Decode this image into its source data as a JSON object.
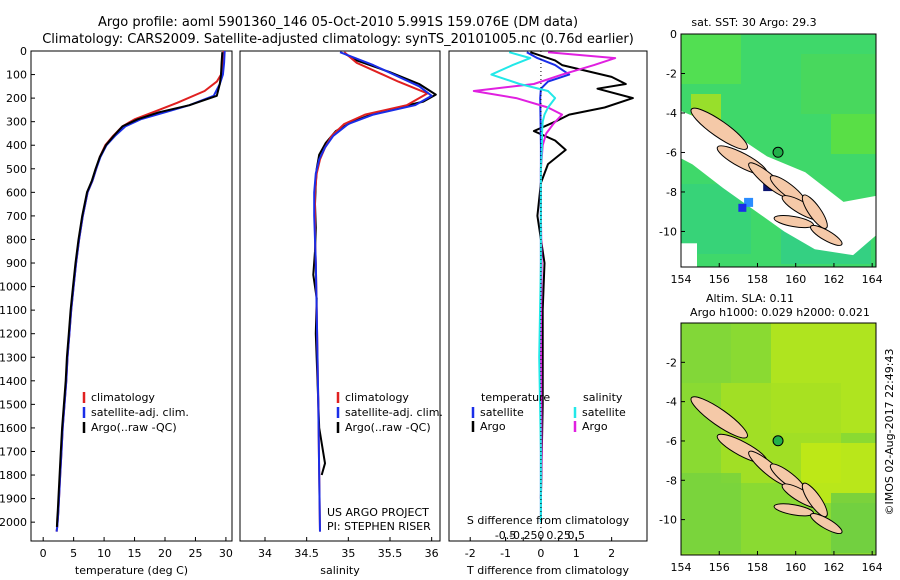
{
  "title": {
    "line1": "Argo profile: aoml 5901360_146 05-Oct-2010 5.991S 159.076E (DM data)",
    "line2": "Climatology: CARS2009. Satellite-adjusted climatology: synTS_20101005.nc (0.76d earlier)"
  },
  "colors": {
    "climatology": "#e02020",
    "satellite": "#1a2ee8",
    "argo": "#000000",
    "argo_salinity_diff": "#e020e0",
    "satellite_salinity_diff": "#22e8e8",
    "land": "#f5c9a8",
    "no_data": "#ffffff"
  },
  "chart_data": [
    {
      "type": "line",
      "id": "temperature",
      "xlabel": "temperature (deg C)",
      "xlim": [
        -2,
        31
      ],
      "xticks": [
        0,
        5,
        10,
        15,
        20,
        25,
        30
      ],
      "ylim": [
        0,
        2080
      ],
      "yticks": [
        0,
        100,
        200,
        300,
        400,
        500,
        600,
        700,
        800,
        900,
        1000,
        1100,
        1200,
        1300,
        1400,
        1500,
        1600,
        1700,
        1800,
        1900,
        2000
      ],
      "legend": [
        "climatology",
        "satellite-adj. clim.",
        "Argo(..raw -QC)"
      ],
      "series": [
        {
          "name": "climatology",
          "color_key": "climatology",
          "x": [
            29.6,
            29.5,
            29.2,
            28.5,
            26.5,
            22,
            18,
            15,
            13,
            11.5,
            10.2,
            9.3,
            8.7,
            8.1,
            7.3,
            6.5,
            5.9,
            5.4,
            5.0,
            4.6,
            4.3,
            4.0,
            3.8,
            3.5,
            3.2,
            3.0,
            2.8,
            2.6,
            2.5,
            2.4,
            2.3,
            2.2
          ],
          "y": [
            0,
            50,
            100,
            130,
            170,
            220,
            260,
            290,
            320,
            360,
            400,
            450,
            500,
            550,
            600,
            700,
            800,
            900,
            1000,
            1100,
            1200,
            1300,
            1400,
            1500,
            1600,
            1700,
            1800,
            1900,
            1950,
            1990,
            2020,
            2040
          ]
        },
        {
          "name": "satellite",
          "color_key": "satellite",
          "x": [
            29.8,
            29.7,
            29.5,
            29.0,
            28.0,
            24,
            20,
            16,
            13.5,
            11.8,
            10.4,
            9.4,
            8.7,
            8.1,
            7.3,
            6.5,
            5.9,
            5.4,
            5.0,
            4.6,
            4.3,
            4.0,
            3.8,
            3.5,
            3.2,
            3.0,
            2.8,
            2.6,
            2.5,
            2.4,
            2.3,
            2.2
          ],
          "y": [
            0,
            50,
            100,
            140,
            190,
            230,
            260,
            290,
            320,
            360,
            400,
            450,
            500,
            550,
            600,
            700,
            800,
            900,
            1000,
            1100,
            1200,
            1300,
            1400,
            1500,
            1600,
            1700,
            1800,
            1900,
            1950,
            1990,
            2020,
            2040
          ]
        },
        {
          "name": "argo",
          "color_key": "argo",
          "x": [
            29.4,
            29.3,
            29.2,
            29.0,
            28.5,
            24,
            19,
            15.5,
            13,
            11.6,
            10.3,
            9.3,
            8.6,
            8.0,
            7.2,
            6.4,
            5.8,
            5.3,
            4.9,
            4.5,
            4.2,
            3.9,
            3.7,
            3.4,
            3.1,
            2.9,
            2.7,
            2.5,
            2.4,
            2.3,
            2.25
          ],
          "y": [
            5,
            50,
            100,
            140,
            190,
            230,
            260,
            290,
            320,
            360,
            400,
            450,
            500,
            550,
            600,
            700,
            800,
            900,
            1000,
            1100,
            1200,
            1300,
            1400,
            1500,
            1600,
            1700,
            1800,
            1900,
            1950,
            1990,
            2020
          ]
        }
      ]
    },
    {
      "type": "line",
      "id": "salinity",
      "xlabel": "salinity",
      "xlim": [
        33.7,
        36.1
      ],
      "xticks": [
        34,
        34.5,
        35,
        35.5,
        36
      ],
      "ylim": [
        0,
        2080
      ],
      "legend": [
        "climatology",
        "satellite-adj. clim.",
        "Argo(..raw -QC)"
      ],
      "annotations": [
        "US ARGO PROJECT",
        "PI: STEPHEN RISER"
      ],
      "series": [
        {
          "name": "climatology",
          "color_key": "climatology",
          "x": [
            34.95,
            35.1,
            35.6,
            35.95,
            35.7,
            35.2,
            34.95,
            34.8,
            34.72,
            34.66,
            34.62,
            34.6,
            34.6,
            34.6,
            34.61,
            34.62,
            34.63,
            34.64,
            34.65,
            34.66
          ],
          "y": [
            5,
            50,
            130,
            180,
            230,
            270,
            310,
            360,
            410,
            460,
            520,
            600,
            700,
            800,
            900,
            1100,
            1300,
            1500,
            1800,
            2040
          ]
        },
        {
          "name": "satellite",
          "color_key": "satellite",
          "x": [
            34.9,
            35.3,
            35.85,
            36.0,
            35.8,
            35.3,
            35.0,
            34.82,
            34.72,
            34.65,
            34.61,
            34.59,
            34.59,
            34.6,
            34.61,
            34.62,
            34.63,
            34.64,
            34.65,
            34.66
          ],
          "y": [
            5,
            60,
            150,
            190,
            230,
            270,
            310,
            360,
            410,
            460,
            520,
            600,
            700,
            800,
            900,
            1100,
            1300,
            1500,
            1800,
            2040
          ]
        },
        {
          "name": "argo",
          "color_key": "argo",
          "x": [
            34.95,
            35.1,
            35.5,
            35.85,
            36.05,
            35.9,
            35.35,
            35.05,
            34.85,
            34.73,
            34.65,
            34.62,
            34.61,
            34.6,
            34.61,
            34.6,
            34.58,
            34.62,
            34.61,
            34.63,
            34.65,
            34.72,
            34.68
          ],
          "y": [
            10,
            40,
            90,
            140,
            185,
            215,
            260,
            300,
            340,
            390,
            440,
            500,
            560,
            650,
            750,
            850,
            950,
            1050,
            1200,
            1400,
            1600,
            1750,
            1800
          ]
        }
      ]
    },
    {
      "type": "line",
      "id": "difference",
      "xlabel": "T difference from climatology",
      "xlabel_top": "S difference from climatology",
      "xlim": [
        -2.6,
        3.0
      ],
      "xticks_T": [
        -2,
        -1,
        0,
        1,
        2
      ],
      "xticks_S": [
        -0.5,
        -0.25,
        0,
        0.25,
        0.5
      ],
      "ylim": [
        0,
        2080
      ],
      "legend": {
        "temperature": "temperature",
        "salinity": "salinity",
        "satellite": "satellite",
        "argo": "Argo"
      },
      "series": [
        {
          "name": "T satellite",
          "color_key": "satellite",
          "x": [
            -0.4,
            -0.1,
            0.4,
            0.8,
            0.2,
            0,
            -0.02,
            0,
            0,
            0,
            0
          ],
          "y": [
            5,
            30,
            60,
            100,
            130,
            160,
            200,
            400,
            800,
            1200,
            2000
          ]
        },
        {
          "name": "T argo",
          "color_key": "argo",
          "x": [
            -0.3,
            0.4,
            0.6,
            2.0,
            2.4,
            1.6,
            2.6,
            1.8,
            0.8,
            0.4,
            -0.2,
            0.4,
            0.7,
            0.2,
            0,
            -0.1,
            0.1,
            0.05,
            0.05,
            0
          ],
          "y": [
            5,
            40,
            60,
            110,
            140,
            160,
            200,
            240,
            270,
            300,
            340,
            380,
            420,
            480,
            560,
            700,
            900,
            1100,
            1500,
            1900
          ]
        },
        {
          "name": "S satellite",
          "color_key": "satellite_salinity_diff",
          "x": [
            -0.9,
            -0.3,
            -0.8,
            -1.4,
            -0.6,
            0.2,
            0.4,
            0.2,
            0.1,
            0.05,
            0.03,
            0.03,
            0,
            0,
            0,
            -0.05,
            0,
            0
          ],
          "y": [
            5,
            30,
            60,
            100,
            140,
            170,
            200,
            240,
            270,
            300,
            350,
            400,
            500,
            700,
            900,
            1300,
            1700,
            2000
          ]
        },
        {
          "name": "S argo",
          "color_key": "argo_salinity_diff",
          "x": [
            0.2,
            2.1,
            1.5,
            0.6,
            -0.2,
            -1.9,
            -0.7,
            0.2,
            0.6,
            0.35,
            0.15,
            0.05,
            0,
            0,
            0.02,
            0,
            0.02,
            0
          ],
          "y": [
            5,
            30,
            60,
            100,
            140,
            170,
            200,
            240,
            270,
            310,
            350,
            400,
            500,
            700,
            900,
            1200,
            1700,
            1900
          ]
        }
      ]
    },
    {
      "type": "heatmap",
      "id": "sst_map",
      "title": "sat. SST: 30 Argo: 29.3",
      "xlim": [
        154,
        164.2
      ],
      "ylim": [
        -11.8,
        0
      ],
      "xticks": [
        154,
        156,
        158,
        160,
        162,
        164
      ],
      "yticks": [
        0,
        -2,
        -4,
        -6,
        -8,
        -10
      ],
      "profile_location": {
        "lon": 159.076,
        "lat": -5.991
      }
    },
    {
      "type": "heatmap",
      "id": "sla_map",
      "title_line1": "Altim. SLA: 0.11",
      "title_line2": "Argo h1000: 0.029 h2000: 0.021",
      "xlim": [
        154,
        164.2
      ],
      "ylim": [
        -11.8,
        0
      ],
      "xticks": [
        154,
        156,
        158,
        160,
        162,
        164
      ],
      "yticks": [
        -2,
        -4,
        -6,
        -8,
        -10
      ],
      "profile_location": {
        "lon": 159.076,
        "lat": -5.991
      }
    }
  ],
  "credit": "©IMOS 02-Aug-2017 22:49:43"
}
